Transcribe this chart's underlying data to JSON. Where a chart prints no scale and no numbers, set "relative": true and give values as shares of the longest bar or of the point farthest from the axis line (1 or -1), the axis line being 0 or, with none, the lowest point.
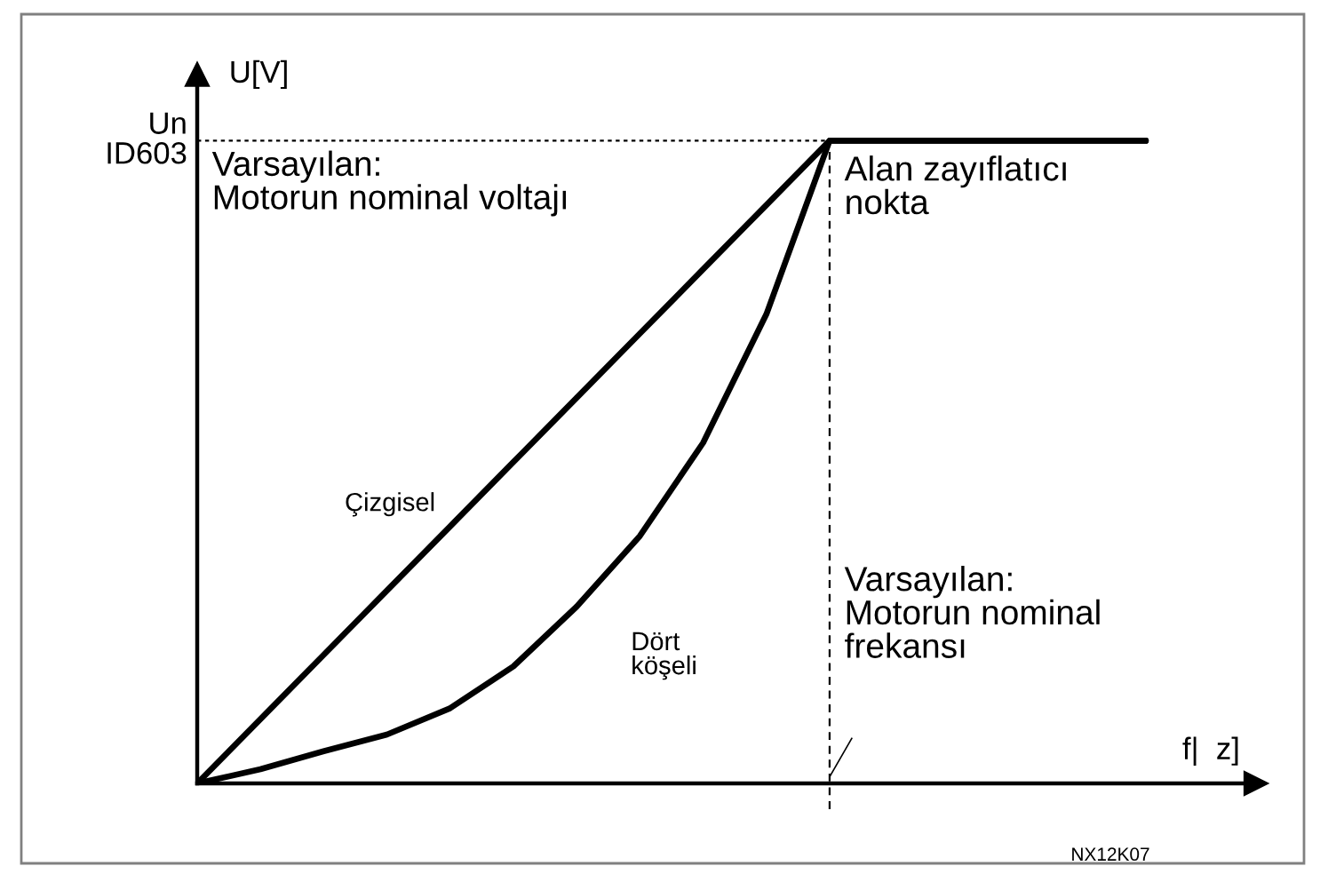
{
  "chart_data": {
    "type": "line",
    "relative": true,
    "xlabel": "f|  z]",
    "ylabel": "U[V]",
    "categories": [
      null,
      null,
      null,
      null,
      null,
      null,
      null,
      null,
      null,
      null,
      null,
      null,
      null,
      null,
      null,
      null
    ],
    "series": [
      {
        "name": "Çizgisel",
        "color": "#000000",
        "values": [
          0,
          0.1,
          0.2,
          0.3,
          0.4,
          0.5,
          0.6,
          0.7,
          0.8,
          0.9,
          1,
          1,
          1,
          1,
          1,
          1
        ]
      },
      {
        "name": "Dört\nköşeli",
        "color": "#000000",
        "values": [
          0,
          0.022,
          0.05,
          0.076,
          0.117,
          0.182,
          0.275,
          0.385,
          0.53,
          0.73,
          1,
          1,
          1,
          1,
          1,
          1
        ]
      }
    ],
    "ref_lines": [
      {
        "axis": "y",
        "value": 1,
        "color": "#000000",
        "line_style": "dotted"
      }
    ],
    "annotations": [
      "Un\nID603",
      "Varsayılan:\nMotorun nominal voltajı",
      "Alan zayıflatıcı\nnokta",
      "Varsayılan:\nMotorun nominal\nfrekansı",
      "NX12K07"
    ],
    "marker": "none",
    "line_style": "solid"
  }
}
